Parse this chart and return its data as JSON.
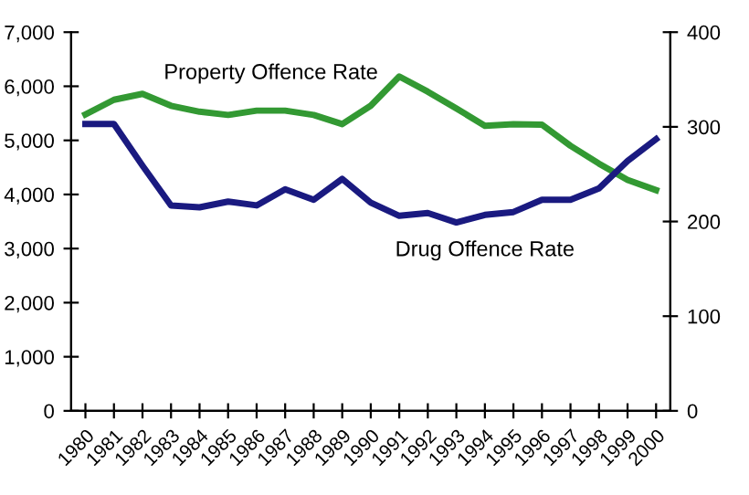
{
  "chart_data": {
    "type": "line",
    "categories": [
      "1980",
      "1981",
      "1982",
      "1983",
      "1984",
      "1985",
      "1986",
      "1987",
      "1988",
      "1989",
      "1990",
      "1991",
      "1992",
      "1993",
      "1994",
      "1995",
      "1996",
      "1997",
      "1998",
      "1999",
      "2000"
    ],
    "series": [
      {
        "name": "Property Offence Rate",
        "color": "#339933",
        "values": [
          5480,
          5750,
          5860,
          5640,
          5530,
          5470,
          5550,
          5550,
          5470,
          5300,
          5640,
          6180,
          5900,
          5590,
          5270,
          5300,
          5290,
          4900,
          4570,
          4270,
          4080
        ]
      },
      {
        "name": "Drug Offence Rate",
        "color": "#1a1a80",
        "axis": "y2",
        "values": [
          303,
          303,
          259,
          217,
          215,
          221,
          217,
          234,
          223,
          245,
          220,
          206,
          209,
          199,
          207,
          210,
          223,
          223,
          235,
          264,
          287
        ]
      }
    ],
    "ylim": [
      0,
      7000
    ],
    "yticks": [
      {
        "value": 0,
        "label": "0"
      },
      {
        "value": 1000,
        "label": "1,000"
      },
      {
        "value": 2000,
        "label": "2,000"
      },
      {
        "value": 3000,
        "label": "3,000"
      },
      {
        "value": 4000,
        "label": "4,000"
      },
      {
        "value": 5000,
        "label": "5,000"
      },
      {
        "value": 6000,
        "label": "6,000"
      },
      {
        "value": 7000,
        "label": "7,000"
      }
    ],
    "y2lim": [
      0,
      400
    ],
    "y2ticks": [
      0,
      100,
      200,
      300,
      400
    ],
    "grid": false,
    "legend": false,
    "marker": "none",
    "line_style": "solid"
  }
}
